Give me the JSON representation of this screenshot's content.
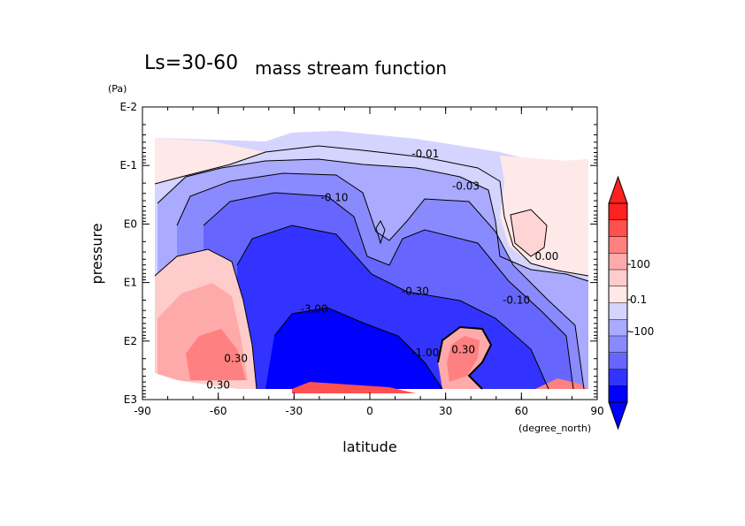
{
  "chart_data": {
    "type": "heatmap",
    "title_prefix": "Ls=30-60",
    "title": "mass stream function",
    "xlabel": "latitude",
    "xunit": "(degree_north)",
    "ylabel": "pressure",
    "yunit": "(Pa)",
    "x_ticks": [
      "-90",
      "-60",
      "-30",
      "0",
      "30",
      "60",
      "90"
    ],
    "x_tick_values": [
      -90,
      -60,
      -30,
      0,
      30,
      60,
      90
    ],
    "xlim": [
      -90,
      90
    ],
    "y_ticks": [
      "E-2",
      "E-1",
      "E0",
      "E1",
      "E2",
      "E3"
    ],
    "y_tick_values": [
      -2,
      -1,
      0,
      1,
      2,
      3
    ],
    "ylim_log10": [
      -2,
      3
    ],
    "y_inverted": true,
    "contour_labels": [
      {
        "text": "-0.01",
        "lat": 22,
        "logp": -1.2
      },
      {
        "text": "-0.03",
        "lat": 38,
        "logp": -0.65
      },
      {
        "text": "-0.10",
        "lat": -14,
        "logp": -0.45
      },
      {
        "text": "0.00",
        "lat": 70,
        "logp": 0.55
      },
      {
        "text": "-0.30",
        "lat": 18,
        "logp": 1.15
      },
      {
        "text": "-0.10",
        "lat": 58,
        "logp": 1.3
      },
      {
        "text": "-3.00",
        "lat": -22,
        "logp": 1.45
      },
      {
        "text": "-1.00",
        "lat": 22,
        "logp": 2.2
      },
      {
        "text": "0.30",
        "lat": -53,
        "logp": 2.3
      },
      {
        "text": "0.30",
        "lat": 37,
        "logp": 2.15
      },
      {
        "text": "0.30",
        "lat": -60,
        "logp": 2.75
      }
    ],
    "colorbar": {
      "colors": [
        "#0000ff",
        "#3333ff",
        "#6666ff",
        "#8a8aff",
        "#aaaaff",
        "#d4d4ff",
        "#ffe8e8",
        "#ffcccc",
        "#ffaaaa",
        "#ff8080",
        "#ff5050",
        "#ff2020"
      ],
      "tick_labels": [
        "100",
        "0.1",
        "-100"
      ],
      "tick_values": [
        100,
        0.1,
        -100
      ]
    }
  }
}
